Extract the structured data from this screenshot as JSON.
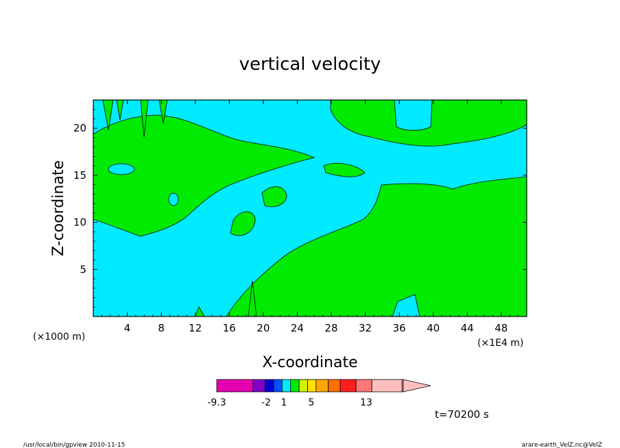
{
  "chart_data": {
    "type": "heatmap",
    "title": "vertical velocity",
    "xlabel": "X-coordinate",
    "ylabel": "Z-coordinate",
    "x_ticks": [
      "4",
      "8",
      "12",
      "16",
      "20",
      "24",
      "28",
      "32",
      "36",
      "40",
      "44",
      "48"
    ],
    "y_ticks": [
      "5",
      "10",
      "15",
      "20"
    ],
    "x_scale_label": "(×1E4 m)",
    "y_scale_label": "(×1000 m)",
    "xlim": [
      0,
      51
    ],
    "ylim": [
      0,
      23
    ],
    "field_levels": [
      {
        "range": "< 0",
        "color": "#00ebff"
      },
      {
        "range": "0 – 1",
        "color": "#00eb00"
      }
    ],
    "colorbar": {
      "tick_labels": [
        "-9.3",
        "-2",
        "1",
        "5",
        "13"
      ],
      "colors": [
        "#e400b0",
        "#8000c8",
        "#0000d0",
        "#0050ff",
        "#00ebff",
        "#00eb00",
        "#d0f000",
        "#ffe000",
        "#ffa800",
        "#ff7000",
        "#ff1e1e",
        "#ff7878",
        "#ffbebe",
        "#ffbebe"
      ],
      "widths": [
        3,
        1,
        0.7,
        0.7,
        0.7,
        0.7,
        0.7,
        0.7,
        1,
        1,
        1.3,
        1.3,
        2.5,
        0.1
      ]
    },
    "time_label": "t=70200 s"
  },
  "footer": {
    "left": "/usr/local/bin/gpview  2010-11-15",
    "right": "arare-earth_VelZ.nc@VelZ"
  }
}
